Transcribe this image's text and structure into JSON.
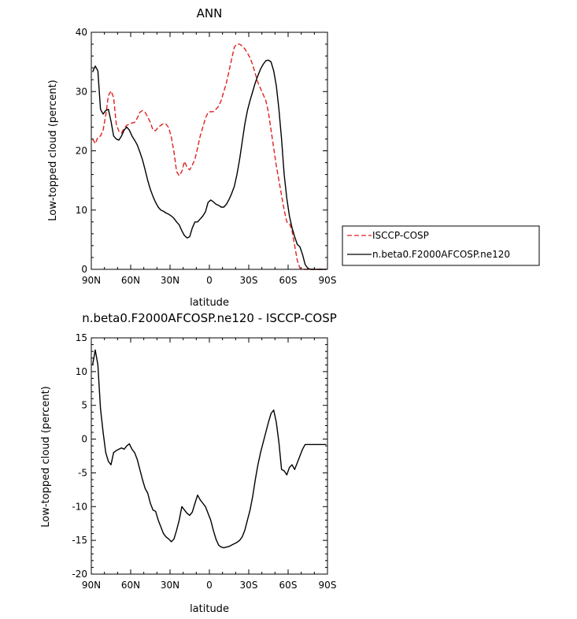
{
  "chart_data": [
    {
      "type": "line",
      "title": "ANN",
      "xlabel": "latitude",
      "ylabel": "Low-topped cloud (percent)",
      "ylim": [
        0,
        40
      ],
      "xlim": [
        90,
        -90
      ],
      "xticks": [
        90,
        60,
        30,
        0,
        -30,
        -60,
        -90
      ],
      "xtick_labels": [
        "90N",
        "60N",
        "30N",
        "0",
        "30S",
        "60S",
        "90S"
      ],
      "yticks": [
        0,
        10,
        20,
        30,
        40
      ],
      "ytick_labels": [
        "0",
        "10",
        "20",
        "30",
        "40"
      ],
      "legend_position": "right",
      "series": [
        {
          "name": "ISCCP-COSP",
          "color": "#e02020",
          "dash": "dashed",
          "x": [
            89,
            87,
            85,
            83,
            81,
            79,
            77,
            75,
            73,
            71,
            69,
            67,
            65,
            63,
            61,
            59,
            57,
            55,
            53,
            51,
            49,
            47,
            45,
            43,
            41,
            39,
            37,
            35,
            33,
            31,
            29,
            27,
            25,
            23,
            21,
            19,
            17,
            15,
            13,
            11,
            9,
            7,
            5,
            3,
            1,
            -1,
            -3,
            -5,
            -7,
            -9,
            -11,
            -13,
            -15,
            -17,
            -19,
            -21,
            -23,
            -25,
            -27,
            -29,
            -31,
            -33,
            -35,
            -37,
            -39,
            -41,
            -43,
            -45,
            -47,
            -49,
            -51,
            -53,
            -55,
            -57,
            -59,
            -61,
            -63,
            -65,
            -67,
            -69,
            -71,
            -73,
            -75,
            -77,
            -79,
            -81,
            -83,
            -85,
            -87,
            -89
          ],
          "values": [
            22.0,
            21.2,
            22.3,
            22.5,
            23.5,
            26.0,
            29.3,
            30.1,
            29.0,
            24.5,
            23.3,
            23.0,
            23.8,
            24.3,
            24.5,
            24.7,
            24.8,
            25.5,
            26.5,
            26.8,
            26.5,
            25.7,
            24.8,
            23.5,
            23.4,
            24.0,
            24.3,
            24.6,
            24.5,
            23.9,
            22.3,
            19.8,
            16.5,
            15.8,
            16.5,
            18.2,
            17.2,
            16.8,
            17.6,
            18.6,
            20.5,
            22.5,
            24.0,
            25.5,
            26.5,
            26.6,
            26.6,
            27.0,
            27.5,
            28.5,
            30.0,
            31.5,
            33.5,
            35.5,
            37.5,
            38.0,
            38.0,
            37.7,
            37.2,
            36.5,
            35.7,
            34.5,
            33.0,
            31.5,
            30.5,
            29.5,
            28.5,
            26.5,
            23.5,
            20.5,
            17.5,
            15.0,
            12.5,
            10.0,
            8.0,
            7.8,
            6.5,
            4.0,
            1.5,
            0.2,
            0.0,
            0,
            0,
            0,
            0,
            0,
            0,
            0,
            0,
            0
          ]
        },
        {
          "name": "n.beta0.F2000AFCOSP.ne120",
          "color": "#000000",
          "dash": "solid",
          "x": [
            89,
            87,
            85,
            83,
            81,
            79,
            77,
            75,
            73,
            71,
            69,
            67,
            65,
            63,
            61,
            59,
            57,
            55,
            53,
            51,
            49,
            47,
            45,
            43,
            41,
            39,
            37,
            35,
            33,
            31,
            29,
            27,
            25,
            23,
            21,
            19,
            17,
            15,
            13,
            11,
            9,
            7,
            5,
            3,
            1,
            -1,
            -3,
            -5,
            -7,
            -9,
            -11,
            -13,
            -15,
            -17,
            -19,
            -21,
            -23,
            -25,
            -27,
            -29,
            -31,
            -33,
            -35,
            -37,
            -39,
            -41,
            -43,
            -45,
            -47,
            -49,
            -51,
            -53,
            -55,
            -57,
            -59,
            -61,
            -63,
            -65,
            -67,
            -69,
            -71,
            -73,
            -75,
            -77,
            -79,
            -81,
            -83,
            -85,
            -87,
            -89
          ],
          "values": [
            33.3,
            34.3,
            33.5,
            27.0,
            26.2,
            26.8,
            27.0,
            25.0,
            22.5,
            22.0,
            21.8,
            22.5,
            23.5,
            24.0,
            23.5,
            22.5,
            21.8,
            21.0,
            19.8,
            18.5,
            16.8,
            15.0,
            13.5,
            12.3,
            11.3,
            10.5,
            10.0,
            9.8,
            9.5,
            9.3,
            9.0,
            8.6,
            8.0,
            7.5,
            6.5,
            5.7,
            5.3,
            5.5,
            7.0,
            8.0,
            8.0,
            8.5,
            9.0,
            9.7,
            11.3,
            11.7,
            11.4,
            11.0,
            10.8,
            10.5,
            10.5,
            11.0,
            11.8,
            12.8,
            14.0,
            16.0,
            18.5,
            21.5,
            24.5,
            26.8,
            28.5,
            30.0,
            31.5,
            32.7,
            33.8,
            34.6,
            35.2,
            35.3,
            35.0,
            33.5,
            31.0,
            27.0,
            22.0,
            16.0,
            12.0,
            9.0,
            7.0,
            5.5,
            4.2,
            3.8,
            2.5,
            0.8,
            0.2,
            0,
            0,
            0,
            0,
            0,
            0,
            0
          ]
        }
      ]
    },
    {
      "type": "line",
      "title": "n.beta0.F2000AFCOSP.ne120 - ISCCP-COSP",
      "xlabel": "latitude",
      "ylabel": "Low-topped cloud (percent)",
      "ylim": [
        -20,
        15
      ],
      "xlim": [
        90,
        -90
      ],
      "xticks": [
        90,
        60,
        30,
        0,
        -30,
        -60,
        -90
      ],
      "xtick_labels": [
        "90N",
        "60N",
        "30N",
        "0",
        "30S",
        "60S",
        "90S"
      ],
      "yticks": [
        -20,
        -15,
        -10,
        -5,
        0,
        5,
        10,
        15
      ],
      "ytick_labels": [
        "-20",
        "-15",
        "-10",
        "-5",
        "0",
        "5",
        "10",
        "15"
      ],
      "series": [
        {
          "name": "n.beta0.F2000AFCOSP.ne120 - ISCCP-COSP",
          "color": "#000000",
          "dash": "solid",
          "x": [
            89,
            87,
            85,
            83,
            81,
            79,
            77,
            75,
            73,
            71,
            69,
            67,
            65,
            63,
            61,
            59,
            57,
            55,
            53,
            51,
            49,
            47,
            45,
            43,
            41,
            39,
            37,
            35,
            33,
            31,
            29,
            27,
            25,
            23,
            21,
            19,
            17,
            15,
            13,
            11,
            9,
            7,
            5,
            3,
            1,
            -1,
            -3,
            -5,
            -7,
            -9,
            -11,
            -13,
            -15,
            -17,
            -19,
            -21,
            -23,
            -25,
            -27,
            -29,
            -31,
            -33,
            -35,
            -37,
            -39,
            -41,
            -43,
            -45,
            -47,
            -49,
            -51,
            -53,
            -55,
            -57,
            -59,
            -61,
            -63,
            -65,
            -67,
            -69,
            -71,
            -73,
            -75,
            -77,
            -79,
            -81,
            -83,
            -85,
            -87,
            -89
          ],
          "values": [
            11.0,
            13.2,
            11.0,
            4.5,
            1.0,
            -2.0,
            -3.3,
            -3.8,
            -2.0,
            -1.7,
            -1.5,
            -1.3,
            -1.5,
            -1.0,
            -0.7,
            -1.5,
            -2.0,
            -3.0,
            -4.5,
            -6.0,
            -7.3,
            -8.0,
            -9.5,
            -10.5,
            -10.7,
            -12.0,
            -13.0,
            -14.0,
            -14.5,
            -14.8,
            -15.2,
            -14.8,
            -13.5,
            -12.0,
            -10.0,
            -10.5,
            -11.0,
            -11.3,
            -10.8,
            -9.5,
            -8.3,
            -9.0,
            -9.5,
            -10.0,
            -11.0,
            -12.0,
            -13.5,
            -14.8,
            -15.7,
            -16.0,
            -16.1,
            -16.0,
            -15.9,
            -15.7,
            -15.5,
            -15.3,
            -15.0,
            -14.5,
            -13.5,
            -12.0,
            -10.5,
            -8.5,
            -6.0,
            -3.8,
            -2.0,
            -0.5,
            1.0,
            2.5,
            3.8,
            4.3,
            2.5,
            -0.5,
            -4.5,
            -4.7,
            -5.3,
            -4.2,
            -3.8,
            -4.5,
            -3.5,
            -2.5,
            -1.5,
            -0.8,
            -0.8,
            -0.8,
            -0.8,
            -0.8,
            -0.8,
            -0.8,
            -0.8,
            -0.8
          ]
        }
      ]
    }
  ]
}
